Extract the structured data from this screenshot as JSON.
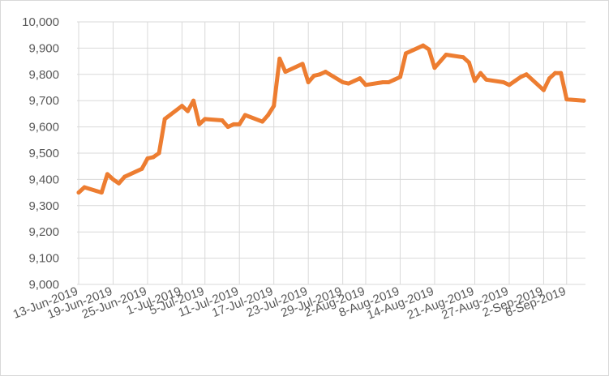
{
  "chart_data": {
    "type": "line",
    "title": "",
    "xlabel": "",
    "ylabel": "",
    "ylim": [
      9000,
      10000
    ],
    "y_ticks": [
      9000,
      9100,
      9200,
      9300,
      9400,
      9500,
      9600,
      9700,
      9800,
      9900,
      10000
    ],
    "y_tick_labels": [
      "9,000",
      "9,100",
      "9,200",
      "9,300",
      "9,400",
      "9,500",
      "9,600",
      "9,700",
      "9,800",
      "9,900",
      "10,000"
    ],
    "x_tick_labels": [
      "13-Jun-2019",
      "19-Jun-2019",
      "25-Jun-2019",
      "1-Jul-2019",
      "5-Jul-2019",
      "11-Jul-2019",
      "17-Jul-2019",
      "23-Jul-2019",
      "29-Jul-2019",
      "2-Aug-2019",
      "8-Aug-2019",
      "14-Aug-2019",
      "21-Aug-2019",
      "27-Aug-2019",
      "2-Sep-2019",
      "6-Sep-2019"
    ],
    "grid": true,
    "legend": "none",
    "series": [
      {
        "color": "#ed7d31",
        "x": [
          "13-Jun-2019",
          "14-Jun-2019",
          "17-Jun-2019",
          "18-Jun-2019",
          "19-Jun-2019",
          "20-Jun-2019",
          "21-Jun-2019",
          "24-Jun-2019",
          "25-Jun-2019",
          "26-Jun-2019",
          "27-Jun-2019",
          "28-Jun-2019",
          "1-Jul-2019",
          "2-Jul-2019",
          "3-Jul-2019",
          "4-Jul-2019",
          "5-Jul-2019",
          "8-Jul-2019",
          "9-Jul-2019",
          "10-Jul-2019",
          "11-Jul-2019",
          "12-Jul-2019",
          "15-Jul-2019",
          "16-Jul-2019",
          "17-Jul-2019",
          "18-Jul-2019",
          "19-Jul-2019",
          "22-Jul-2019",
          "23-Jul-2019",
          "24-Jul-2019",
          "25-Jul-2019",
          "26-Jul-2019",
          "29-Jul-2019",
          "30-Jul-2019",
          "31-Jul-2019",
          "1-Aug-2019",
          "2-Aug-2019",
          "5-Aug-2019",
          "6-Aug-2019",
          "7-Aug-2019",
          "8-Aug-2019",
          "9-Aug-2019",
          "12-Aug-2019",
          "13-Aug-2019",
          "14-Aug-2019",
          "15-Aug-2019",
          "16-Aug-2019",
          "19-Aug-2019",
          "20-Aug-2019",
          "21-Aug-2019",
          "22-Aug-2019",
          "23-Aug-2019",
          "26-Aug-2019",
          "27-Aug-2019",
          "28-Aug-2019",
          "29-Aug-2019",
          "30-Aug-2019",
          "2-Sep-2019",
          "3-Sep-2019",
          "4-Sep-2019",
          "5-Sep-2019",
          "6-Sep-2019",
          "9-Sep-2019"
        ],
        "values": [
          9350,
          9370,
          9350,
          9420,
          9400,
          9385,
          9410,
          9440,
          9480,
          9485,
          9500,
          9630,
          9680,
          9660,
          9700,
          9610,
          9630,
          9625,
          9600,
          9610,
          9610,
          9645,
          9620,
          9645,
          9680,
          9860,
          9810,
          9840,
          9770,
          9795,
          9800,
          9810,
          9770,
          9765,
          9775,
          9785,
          9760,
          9770,
          9770,
          9780,
          9790,
          9880,
          9910,
          9895,
          9825,
          9850,
          9875,
          9865,
          9845,
          9775,
          9805,
          9780,
          9770,
          9760,
          9775,
          9790,
          9800,
          9740,
          9785,
          9805,
          9805,
          9705,
          9700
        ]
      }
    ]
  }
}
